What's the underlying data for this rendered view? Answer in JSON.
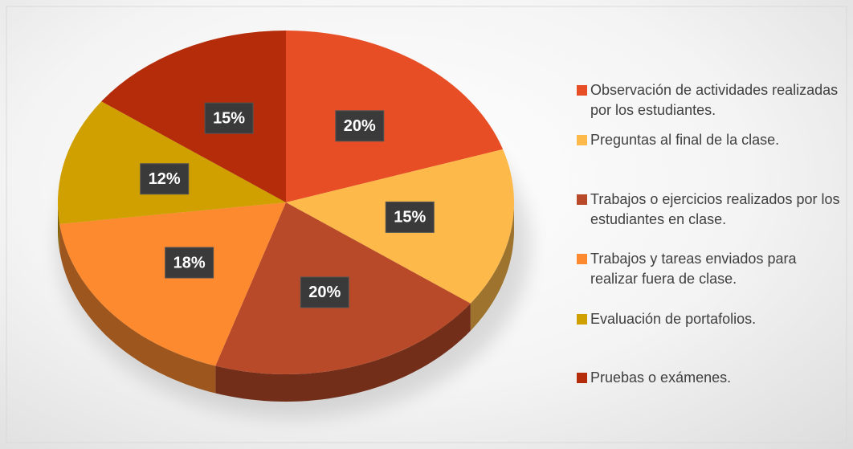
{
  "chart_data": {
    "type": "pie",
    "categories": [
      "Observación de actividades realizadas por los estudiantes.",
      "Preguntas al final de la clase.",
      "Trabajos o ejercicios realizados por los estudiantes en clase.",
      "Trabajos y tareas enviados para realizar fuera de clase.",
      "Evaluación de portafolios.",
      "Pruebas o exámenes."
    ],
    "values": [
      20,
      15,
      20,
      18,
      12,
      15
    ],
    "value_labels": [
      "20%",
      "15%",
      "20%",
      "18%",
      "12%",
      "15%"
    ],
    "colors": [
      "#e84e25",
      "#fdb94a",
      "#b84a29",
      "#fd8a2e",
      "#d0a000",
      "#b52c0a"
    ],
    "legend": "right"
  }
}
